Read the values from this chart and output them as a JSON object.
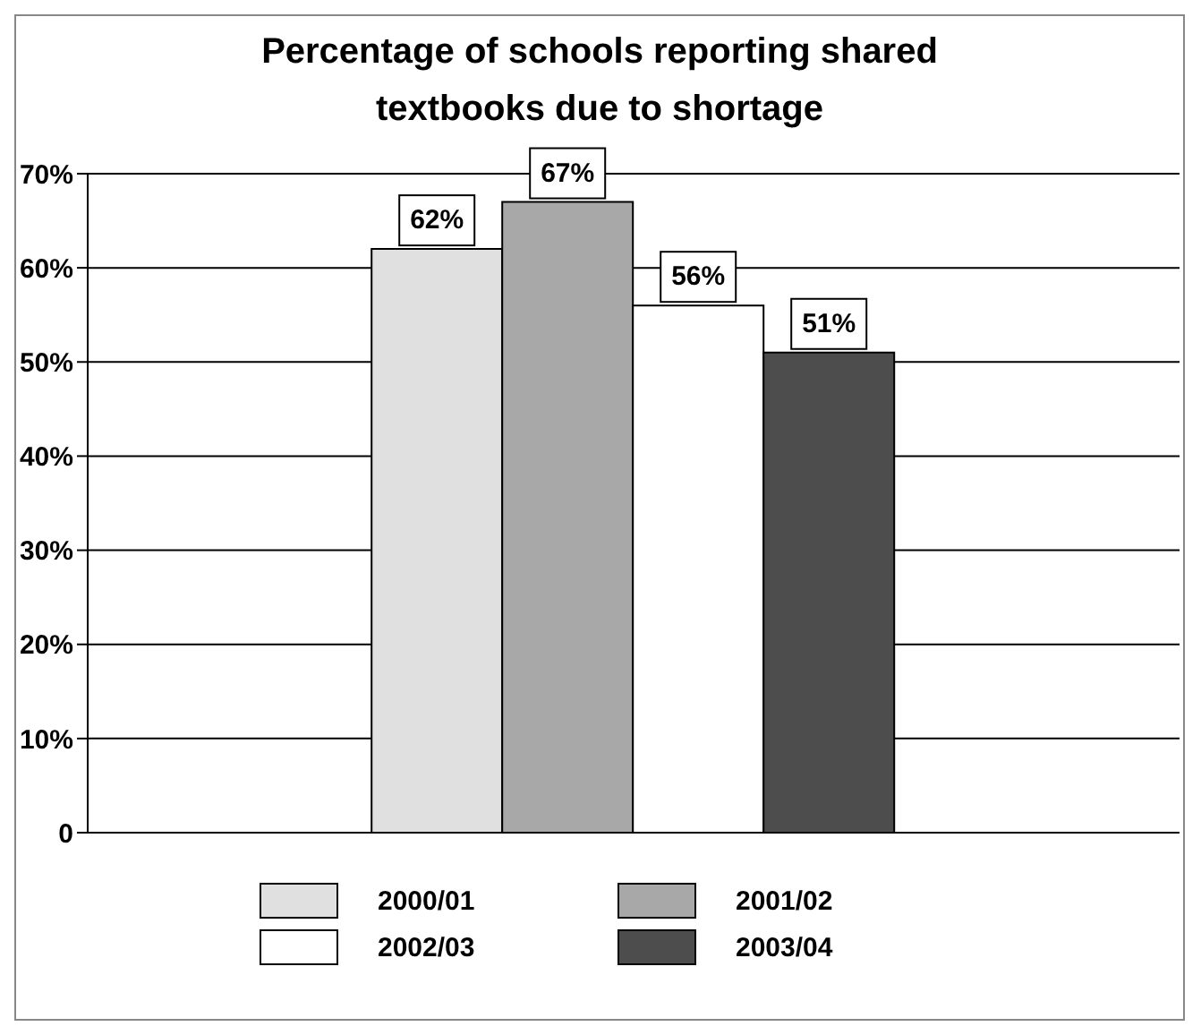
{
  "chart_data": {
    "type": "bar",
    "title": "Percentage of schools reporting shared textbooks due to shortage",
    "categories": [
      null
    ],
    "series": [
      {
        "name": "2000/01",
        "color": "#e0e0e0",
        "values": [
          62
        ],
        "value_labels": [
          "62%"
        ]
      },
      {
        "name": "2001/02",
        "color": "#a8a8a8",
        "values": [
          67
        ],
        "value_labels": [
          "67%"
        ]
      },
      {
        "name": "2002/03",
        "color": "#ffffff",
        "values": [
          56
        ],
        "value_labels": [
          "56%"
        ]
      },
      {
        "name": "2003/04",
        "color": "#4d4d4d",
        "values": [
          51
        ],
        "value_labels": [
          "51%"
        ]
      }
    ],
    "ylim": [
      0,
      70
    ],
    "yticks": [
      0,
      {
        "value": 10,
        "label": "10%"
      },
      {
        "value": 20,
        "label": "20%"
      },
      {
        "value": 30,
        "label": "30%"
      },
      {
        "value": 40,
        "label": "40%"
      },
      {
        "value": 50,
        "label": "50%"
      },
      {
        "value": 60,
        "label": "60%"
      },
      {
        "value": 70,
        "label": "70%"
      }
    ],
    "grid": "y",
    "legend": "bottom"
  }
}
